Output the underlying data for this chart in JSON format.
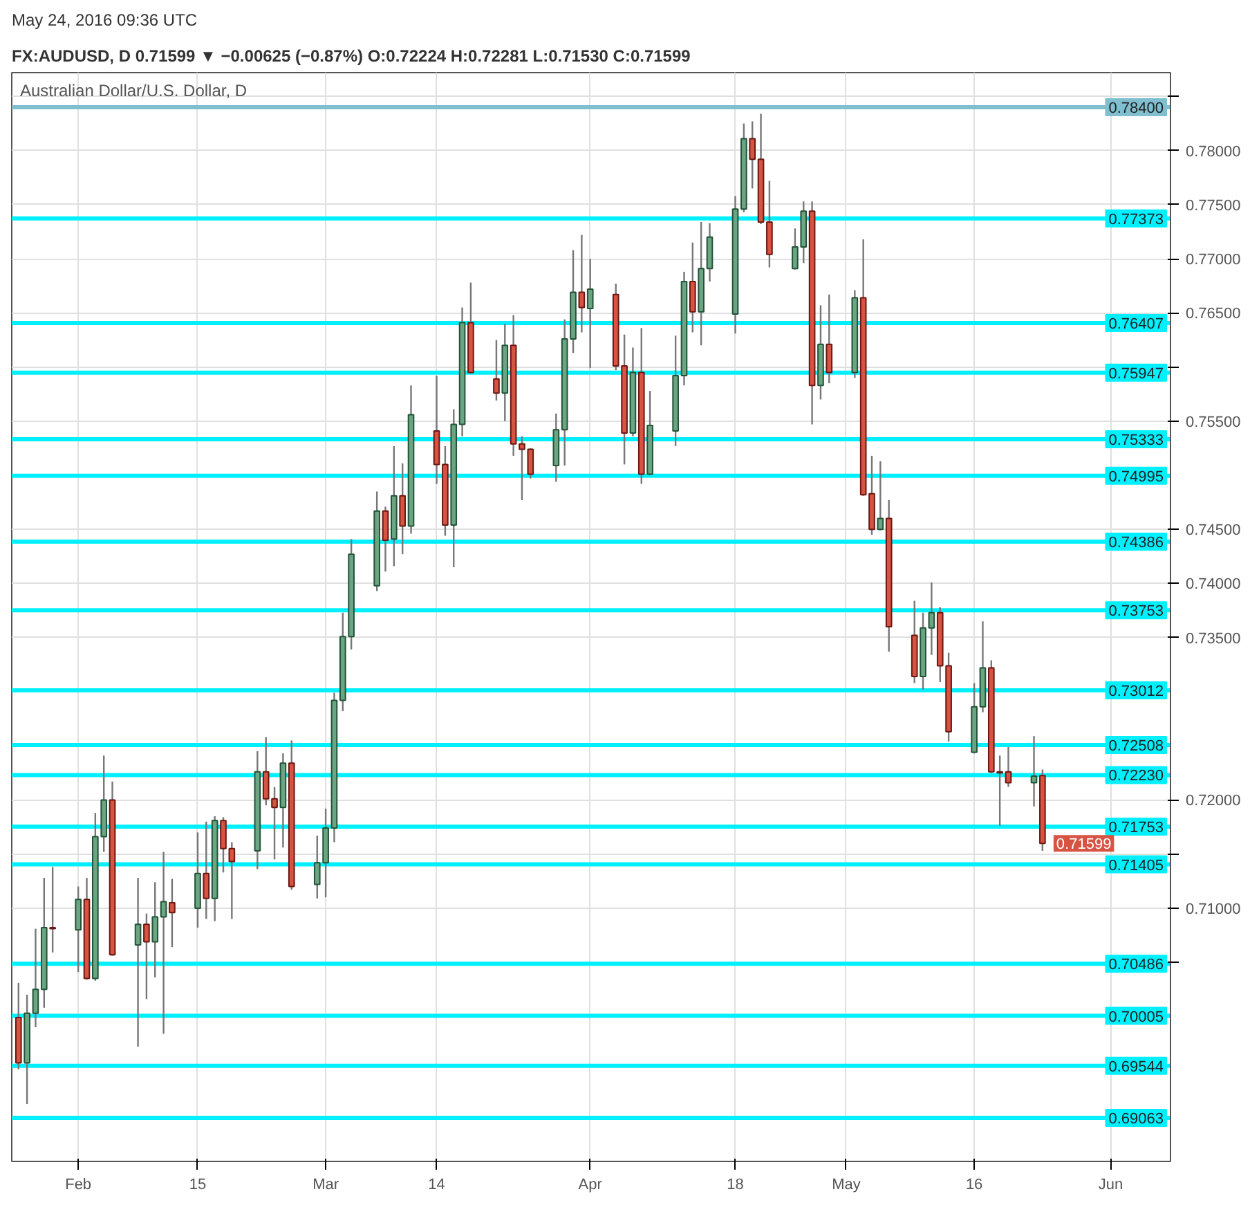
{
  "chart_data": {
    "type": "candlestick",
    "title": "FX:AUDUSD, D  0.71599 ▼ −0.00625 (−0.87%)  O:0.72224 H:0.72281 L:0.71530 C:0.71599",
    "subtitle": "May 24, 2016 09:36 UTC",
    "annotations": [
      "Australian Dollar/U.S. Dollar, D",
      {
        "text": "0.71599",
        "x": "2016-05-24",
        "y": 0.71599
      }
    ],
    "x": [
      "2016-01-25",
      "2016-01-26",
      "2016-01-27",
      "2016-01-28",
      "2016-01-29",
      "2016-02-01",
      "2016-02-02",
      "2016-02-03",
      "2016-02-04",
      "2016-02-05",
      "2016-02-08",
      "2016-02-09",
      "2016-02-10",
      "2016-02-11",
      "2016-02-12",
      "2016-02-15",
      "2016-02-16",
      "2016-02-17",
      "2016-02-18",
      "2016-02-19",
      "2016-02-22",
      "2016-02-23",
      "2016-02-24",
      "2016-02-25",
      "2016-02-26",
      "2016-02-29",
      "2016-03-01",
      "2016-03-02",
      "2016-03-03",
      "2016-03-04",
      "2016-03-07",
      "2016-03-08",
      "2016-03-09",
      "2016-03-10",
      "2016-03-11",
      "2016-03-14",
      "2016-03-15",
      "2016-03-16",
      "2016-03-17",
      "2016-03-18",
      "2016-03-21",
      "2016-03-22",
      "2016-03-23",
      "2016-03-24",
      "2016-03-25",
      "2016-03-28",
      "2016-03-29",
      "2016-03-30",
      "2016-03-31",
      "2016-04-01",
      "2016-04-04",
      "2016-04-05",
      "2016-04-06",
      "2016-04-07",
      "2016-04-08",
      "2016-04-11",
      "2016-04-12",
      "2016-04-13",
      "2016-04-14",
      "2016-04-15",
      "2016-04-18",
      "2016-04-19",
      "2016-04-20",
      "2016-04-21",
      "2016-04-22",
      "2016-04-25",
      "2016-04-26",
      "2016-04-27",
      "2016-04-28",
      "2016-04-29",
      "2016-05-02",
      "2016-05-03",
      "2016-05-04",
      "2016-05-05",
      "2016-05-06",
      "2016-05-09",
      "2016-05-10",
      "2016-05-11",
      "2016-05-12",
      "2016-05-13",
      "2016-05-16",
      "2016-05-17",
      "2016-05-18",
      "2016-05-19",
      "2016-05-20",
      "2016-05-23",
      "2016-05-24"
    ],
    "ohlc": [
      [
        0.6999,
        0.7031,
        0.6951,
        0.6957
      ],
      [
        0.6957,
        0.702,
        0.6919,
        0.7003
      ],
      [
        0.7003,
        0.7081,
        0.699,
        0.7025
      ],
      [
        0.7025,
        0.7128,
        0.7008,
        0.7082
      ],
      [
        0.7082,
        0.7138,
        0.7059,
        0.7081
      ],
      [
        0.708,
        0.712,
        0.7041,
        0.7108
      ],
      [
        0.7108,
        0.7128,
        0.7034,
        0.7035
      ],
      [
        0.7035,
        0.7188,
        0.7033,
        0.7166
      ],
      [
        0.7166,
        0.7241,
        0.7152,
        0.72
      ],
      [
        0.72,
        0.7217,
        0.7056,
        0.7057
      ],
      [
        0.7066,
        0.7128,
        0.6972,
        0.7085
      ],
      [
        0.7085,
        0.7095,
        0.7016,
        0.7069
      ],
      [
        0.7069,
        0.7124,
        0.7036,
        0.7092
      ],
      [
        0.7092,
        0.7152,
        0.6984,
        0.7106
      ],
      [
        0.7105,
        0.7127,
        0.7064,
        0.7096
      ],
      [
        0.71,
        0.717,
        0.7082,
        0.7132
      ],
      [
        0.7132,
        0.718,
        0.709,
        0.7109
      ],
      [
        0.7109,
        0.7185,
        0.7088,
        0.7181
      ],
      [
        0.7181,
        0.7184,
        0.7133,
        0.7155
      ],
      [
        0.7155,
        0.7161,
        0.709,
        0.7143
      ],
      [
        0.7153,
        0.7245,
        0.7136,
        0.7226
      ],
      [
        0.7226,
        0.7258,
        0.7195,
        0.7201
      ],
      [
        0.7201,
        0.7212,
        0.7145,
        0.7193
      ],
      [
        0.7193,
        0.7243,
        0.7156,
        0.7234
      ],
      [
        0.7234,
        0.7255,
        0.7117,
        0.712
      ],
      [
        0.7122,
        0.7167,
        0.7109,
        0.7142
      ],
      [
        0.7142,
        0.7192,
        0.711,
        0.7174
      ],
      [
        0.7174,
        0.7299,
        0.7161,
        0.7292
      ],
      [
        0.7292,
        0.7373,
        0.7282,
        0.7351
      ],
      [
        0.7351,
        0.7441,
        0.7339,
        0.7427
      ],
      [
        0.7398,
        0.7485,
        0.7393,
        0.7467
      ],
      [
        0.7467,
        0.7471,
        0.7411,
        0.744
      ],
      [
        0.7441,
        0.7527,
        0.7416,
        0.7481
      ],
      [
        0.7481,
        0.7511,
        0.7427,
        0.7453
      ],
      [
        0.7453,
        0.7583,
        0.7446,
        0.7556
      ],
      [
        0.7541,
        0.7592,
        0.7492,
        0.751
      ],
      [
        0.751,
        0.7527,
        0.7444,
        0.7454
      ],
      [
        0.7454,
        0.7561,
        0.7415,
        0.7547
      ],
      [
        0.7547,
        0.7655,
        0.7536,
        0.7641
      ],
      [
        0.7641,
        0.7678,
        0.7594,
        0.7595
      ],
      [
        0.7589,
        0.7625,
        0.7569,
        0.7576
      ],
      [
        0.7576,
        0.764,
        0.755,
        0.762
      ],
      [
        0.762,
        0.7648,
        0.7518,
        0.7529
      ],
      [
        0.7529,
        0.7536,
        0.7477,
        0.7524
      ],
      [
        0.7524,
        0.7525,
        0.7497,
        0.7501
      ],
      [
        0.7509,
        0.7557,
        0.7494,
        0.7542
      ],
      [
        0.7542,
        0.7644,
        0.7509,
        0.7626
      ],
      [
        0.7626,
        0.7708,
        0.7613,
        0.7669
      ],
      [
        0.7669,
        0.7722,
        0.7632,
        0.7655
      ],
      [
        0.7654,
        0.77,
        0.7599,
        0.7672
      ],
      [
        0.7667,
        0.7677,
        0.7597,
        0.7601
      ],
      [
        0.7601,
        0.763,
        0.751,
        0.7539
      ],
      [
        0.7539,
        0.7618,
        0.7536,
        0.7595
      ],
      [
        0.7595,
        0.7636,
        0.7492,
        0.7501
      ],
      [
        0.7501,
        0.7578,
        0.75,
        0.7546
      ],
      [
        0.7541,
        0.7629,
        0.7527,
        0.7592
      ],
      [
        0.7592,
        0.7688,
        0.7583,
        0.7679
      ],
      [
        0.7679,
        0.7715,
        0.7632,
        0.7651
      ],
      [
        0.7651,
        0.7734,
        0.762,
        0.7691
      ],
      [
        0.7691,
        0.7733,
        0.7679,
        0.772
      ],
      [
        0.7649,
        0.7758,
        0.7631,
        0.7746
      ],
      [
        0.7746,
        0.7825,
        0.7743,
        0.7811
      ],
      [
        0.7811,
        0.7827,
        0.7765,
        0.7792
      ],
      [
        0.7792,
        0.7834,
        0.7732,
        0.7734
      ],
      [
        0.7734,
        0.7772,
        0.7692,
        0.7704
      ],
      [
        0.7691,
        0.7728,
        0.769,
        0.7711
      ],
      [
        0.7711,
        0.7753,
        0.7696,
        0.7744
      ],
      [
        0.7744,
        0.7753,
        0.7547,
        0.7583
      ],
      [
        0.7583,
        0.7657,
        0.757,
        0.7621
      ],
      [
        0.7621,
        0.7667,
        0.7585,
        0.7595
      ],
      [
        0.7595,
        0.7671,
        0.759,
        0.7664
      ],
      [
        0.7664,
        0.7718,
        0.7481,
        0.7482
      ],
      [
        0.7483,
        0.7518,
        0.7445,
        0.745
      ],
      [
        0.745,
        0.7513,
        0.7449,
        0.746
      ],
      [
        0.746,
        0.7477,
        0.7337,
        0.736
      ],
      [
        0.7352,
        0.7384,
        0.7308,
        0.7314
      ],
      [
        0.7314,
        0.7373,
        0.7302,
        0.7359
      ],
      [
        0.7359,
        0.7401,
        0.7334,
        0.7373
      ],
      [
        0.7373,
        0.7378,
        0.7309,
        0.7324
      ],
      [
        0.7324,
        0.7336,
        0.7254,
        0.7263
      ],
      [
        0.7244,
        0.7308,
        0.7243,
        0.7286
      ],
      [
        0.7286,
        0.7365,
        0.7281,
        0.7322
      ],
      [
        0.7322,
        0.7329,
        0.7225,
        0.7226
      ],
      [
        0.7226,
        0.7241,
        0.7176,
        0.7225
      ],
      [
        0.7226,
        0.7249,
        0.7212,
        0.7216
      ],
      [
        0.7216,
        0.7259,
        0.7194,
        0.7222
      ],
      [
        0.72224,
        0.72281,
        0.7153,
        0.71599
      ]
    ],
    "colors": [
      "#d75442",
      "#6ba583",
      "#6ba583",
      "#6ba583",
      "#d75442",
      "#6ba583",
      "#d75442",
      "#6ba583",
      "#6ba583",
      "#d75442",
      "#6ba583",
      "#d75442",
      "#6ba583",
      "#6ba583",
      "#d75442",
      "#6ba583",
      "#d75442",
      "#6ba583",
      "#d75442",
      "#d75442",
      "#6ba583",
      "#d75442",
      "#d75442",
      "#6ba583",
      "#d75442",
      "#6ba583",
      "#6ba583",
      "#6ba583",
      "#6ba583",
      "#6ba583",
      "#6ba583",
      "#d75442",
      "#6ba583",
      "#d75442",
      "#6ba583",
      "#d75442",
      "#d75442",
      "#6ba583",
      "#6ba583",
      "#d75442",
      "#d75442",
      "#6ba583",
      "#d75442",
      "#d75442",
      "#d75442",
      "#6ba583",
      "#6ba583",
      "#6ba583",
      "#d75442",
      "#6ba583",
      "#d75442",
      "#d75442",
      "#6ba583",
      "#d75442",
      "#6ba583",
      "#6ba583",
      "#6ba583",
      "#d75442",
      "#6ba583",
      "#6ba583",
      "#6ba583",
      "#6ba583",
      "#d75442",
      "#d75442",
      "#d75442",
      "#6ba583",
      "#6ba583",
      "#d75442",
      "#6ba583",
      "#d75442",
      "#6ba583",
      "#d75442",
      "#d75442",
      "#6ba583",
      "#d75442",
      "#d75442",
      "#6ba583",
      "#6ba583",
      "#d75442",
      "#d75442",
      "#6ba583",
      "#6ba583",
      "#d75442",
      "#d75442",
      "#d75442",
      "#6ba583",
      "#d75442"
    ],
    "xlim": [
      "2016-01-24T05:00",
      "2016-06-08T00:00"
    ],
    "xticks": [
      {
        "value": "2016-02-01",
        "label": "Feb"
      },
      {
        "value": "2016-02-15",
        "label": "15"
      },
      {
        "value": "2016-03-01",
        "label": "Mar"
      },
      {
        "value": "2016-03-14",
        "label": "14"
      },
      {
        "value": "2016-04-01",
        "label": "Apr"
      },
      {
        "value": "2016-04-18",
        "label": "18"
      },
      {
        "value": "2016-05-01",
        "label": "May"
      },
      {
        "value": "2016-05-16",
        "label": "16"
      },
      {
        "value": "2016-06-01",
        "label": "Jun"
      }
    ],
    "ylim": [
      0.6866,
      0.7872
    ],
    "yticks": [
      {
        "value": 0.705,
        "label": null
      },
      {
        "value": 0.71,
        "label": "0.71000"
      },
      {
        "value": 0.715,
        "label": null
      },
      {
        "value": 0.72,
        "label": "0.72000"
      },
      {
        "value": 0.735,
        "label": "0.73500"
      },
      {
        "value": 0.74,
        "label": "0.74000"
      },
      {
        "value": 0.745,
        "label": "0.74500"
      },
      {
        "value": 0.755,
        "label": "0.75500"
      },
      {
        "value": 0.76,
        "label": null
      },
      {
        "value": 0.765,
        "label": "0.76500"
      },
      {
        "value": 0.77,
        "label": "0.77000"
      },
      {
        "value": 0.775,
        "label": "0.77500"
      },
      {
        "value": 0.78,
        "label": "0.78000"
      },
      {
        "value": 0.785,
        "label": null
      }
    ],
    "ref_lines": [
      {
        "axis": "y",
        "value": 0.784,
        "label": "0.78400",
        "color": "#7fbfcf"
      },
      {
        "axis": "y",
        "value": 0.77373,
        "label": "0.77373",
        "color": "#00f0ff"
      },
      {
        "axis": "y",
        "value": 0.76407,
        "label": "0.76407",
        "color": "#00f0ff"
      },
      {
        "axis": "y",
        "value": 0.75947,
        "label": "0.75947",
        "color": "#00f0ff"
      },
      {
        "axis": "y",
        "value": 0.75333,
        "label": "0.75333",
        "color": "#00f0ff"
      },
      {
        "axis": "y",
        "value": 0.74995,
        "label": "0.74995",
        "color": "#00f0ff"
      },
      {
        "axis": "y",
        "value": 0.74386,
        "label": "0.74386",
        "color": "#00f0ff"
      },
      {
        "axis": "y",
        "value": 0.73753,
        "label": "0.73753",
        "color": "#00f0ff"
      },
      {
        "axis": "y",
        "value": 0.73012,
        "label": "0.73012",
        "color": "#00f0ff"
      },
      {
        "axis": "y",
        "value": 0.72508,
        "label": "0.72508",
        "color": "#00f0ff"
      },
      {
        "axis": "y",
        "value": 0.7223,
        "label": "0.72230",
        "color": "#00f0ff"
      },
      {
        "axis": "y",
        "value": 0.71753,
        "label": "0.71753",
        "color": "#00f0ff"
      },
      {
        "axis": "y",
        "value": 0.71405,
        "label": "0.71405",
        "color": "#00f0ff"
      },
      {
        "axis": "y",
        "value": 0.70486,
        "label": "0.70486",
        "color": "#00f0ff"
      },
      {
        "axis": "y",
        "value": 0.70005,
        "label": "0.70005",
        "color": "#00f0ff"
      },
      {
        "axis": "y",
        "value": 0.69544,
        "label": "0.69544",
        "color": "#00f0ff"
      },
      {
        "axis": "y",
        "value": 0.69063,
        "label": "0.69063",
        "color": "#00f0ff"
      }
    ],
    "grid": true
  }
}
